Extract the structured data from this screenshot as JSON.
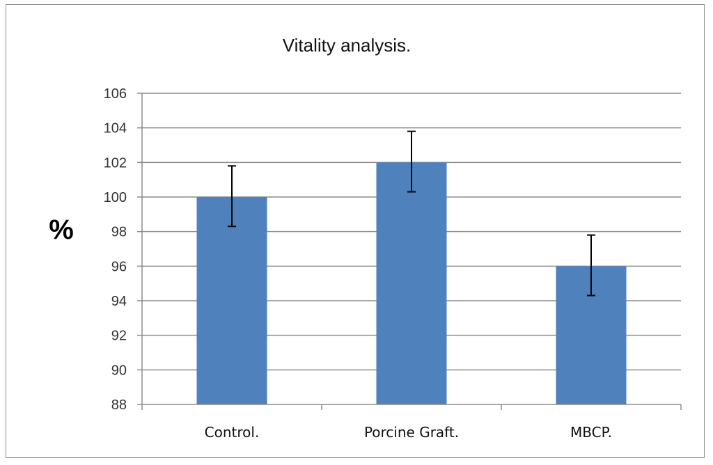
{
  "chart_data": {
    "type": "bar",
    "title": "Vitality analysis.",
    "xlabel": "",
    "ylabel": "%",
    "categories": [
      "Control.",
      "Porcine Graft.",
      "MBCP."
    ],
    "values": [
      100,
      102,
      96
    ],
    "error_bars": [
      {
        "low": 98.3,
        "high": 101.8
      },
      {
        "low": 100.3,
        "high": 103.8
      },
      {
        "low": 94.3,
        "high": 97.8
      }
    ],
    "ylim": [
      88,
      106
    ],
    "yticks": [
      "88",
      "90",
      "92",
      "94",
      "96",
      "98",
      "100",
      "102",
      "104",
      "106"
    ],
    "grid": true,
    "legend": "none",
    "bar_color": "#4f81bd",
    "grid_color": "#8c8c8c"
  }
}
